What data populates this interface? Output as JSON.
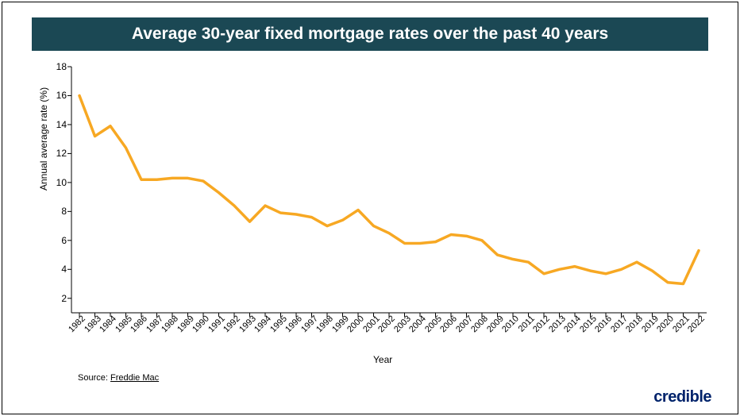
{
  "title": "Average 30-year fixed mortgage rates over the past 40 years",
  "title_bar_bg": "#1b4854",
  "title_fontsize": 21,
  "chart": {
    "type": "line",
    "background_color": "#ffffff",
    "line_color": "#f7a823",
    "line_width": 3.5,
    "axis_color": "#000000",
    "tick_color": "#000000",
    "ylabel": "Annual average rate (%)",
    "xlabel": "Year",
    "label_fontsize": 12,
    "ylim": [
      1,
      18
    ],
    "ytick_step": 2,
    "yticks": [
      2,
      4,
      6,
      8,
      10,
      12,
      14,
      16,
      18
    ],
    "xtick_rotation": -45,
    "years": [
      1982,
      1983,
      1984,
      1985,
      1986,
      1987,
      1988,
      1989,
      1990,
      1991,
      1992,
      1993,
      1994,
      1995,
      1996,
      1997,
      1998,
      1999,
      2000,
      2001,
      2002,
      2003,
      2004,
      2005,
      2006,
      2007,
      2008,
      2009,
      2010,
      2011,
      2012,
      2013,
      2014,
      2015,
      2016,
      2017,
      2018,
      2019,
      2020,
      2021,
      2022
    ],
    "values": [
      16.0,
      13.2,
      13.9,
      12.4,
      10.2,
      10.2,
      10.3,
      10.3,
      10.1,
      9.3,
      8.4,
      7.3,
      8.4,
      7.9,
      7.8,
      7.6,
      7.0,
      7.4,
      8.1,
      7.0,
      6.5,
      5.8,
      5.8,
      5.9,
      6.4,
      6.3,
      6.0,
      5.0,
      4.7,
      4.5,
      3.7,
      4.0,
      4.2,
      3.9,
      3.7,
      4.0,
      4.5,
      3.9,
      3.1,
      3.0,
      5.3
    ]
  },
  "source_label": "Source:",
  "source_name": "Freddie Mac",
  "brand": "credible",
  "brand_color": "#00236b"
}
